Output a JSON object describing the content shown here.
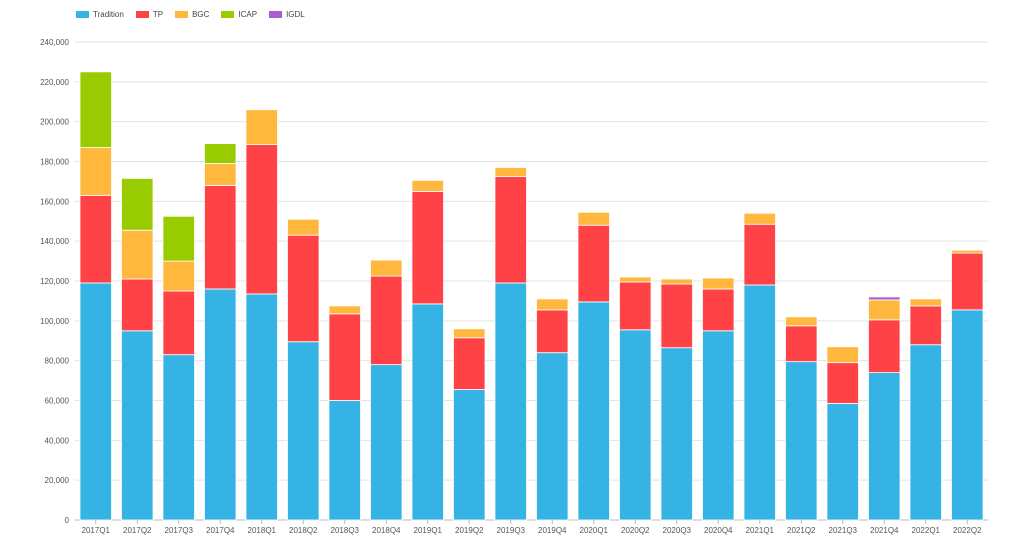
{
  "chart_data": {
    "type": "bar",
    "stacked": true,
    "title": "",
    "xlabel": "",
    "ylabel": "",
    "ylim": [
      0,
      240000
    ],
    "yticks": [
      "0",
      "20,000",
      "40,000",
      "60,000",
      "80,000",
      "100,000",
      "120,000",
      "140,000",
      "160,000",
      "180,000",
      "200,000",
      "220,000",
      "240,000"
    ],
    "grid": true,
    "legend_position": "top-left",
    "categories": [
      "2017Q1",
      "2017Q2",
      "2017Q3",
      "2017Q4",
      "2018Q1",
      "2018Q2",
      "2018Q3",
      "2018Q4",
      "2019Q1",
      "2019Q2",
      "2019Q3",
      "2019Q4",
      "2020Q1",
      "2020Q2",
      "2020Q3",
      "2020Q4",
      "2021Q1",
      "2021Q2",
      "2021Q3",
      "2021Q4",
      "2022Q1",
      "2022Q2"
    ],
    "series": [
      {
        "name": "Tradition",
        "color": "#36b3e5",
        "values": [
          119000,
          95000,
          83000,
          116000,
          113500,
          89500,
          60000,
          78000,
          108500,
          65500,
          119000,
          84000,
          109500,
          95500,
          86500,
          95000,
          118000,
          79500,
          58500,
          74000,
          88000,
          105500
        ]
      },
      {
        "name": "TP",
        "color": "#ff4245",
        "values": [
          44000,
          26000,
          32000,
          52000,
          75000,
          53500,
          43500,
          44500,
          56500,
          26000,
          53500,
          21500,
          38500,
          24000,
          32000,
          21000,
          30500,
          18000,
          20500,
          26500,
          19500,
          28500
        ]
      },
      {
        "name": "BGC",
        "color": "#ffb73e",
        "values": [
          24000,
          24500,
          15000,
          11000,
          17500,
          8000,
          4000,
          8000,
          5500,
          4500,
          4500,
          5500,
          6500,
          2500,
          2500,
          5500,
          5500,
          4500,
          8000,
          10000,
          3500,
          1500
        ]
      },
      {
        "name": "ICAP",
        "color": "#99cc00",
        "values": [
          38000,
          26000,
          22500,
          10000,
          0,
          0,
          0,
          0,
          0,
          0,
          0,
          0,
          0,
          0,
          0,
          0,
          0,
          0,
          0,
          0,
          0,
          0
        ]
      },
      {
        "name": "IGDL",
        "color": "#a65fcc",
        "values": [
          0,
          0,
          0,
          0,
          0,
          0,
          0,
          0,
          0,
          0,
          0,
          0,
          0,
          0,
          0,
          0,
          0,
          0,
          0,
          1500,
          0,
          0
        ]
      }
    ]
  }
}
